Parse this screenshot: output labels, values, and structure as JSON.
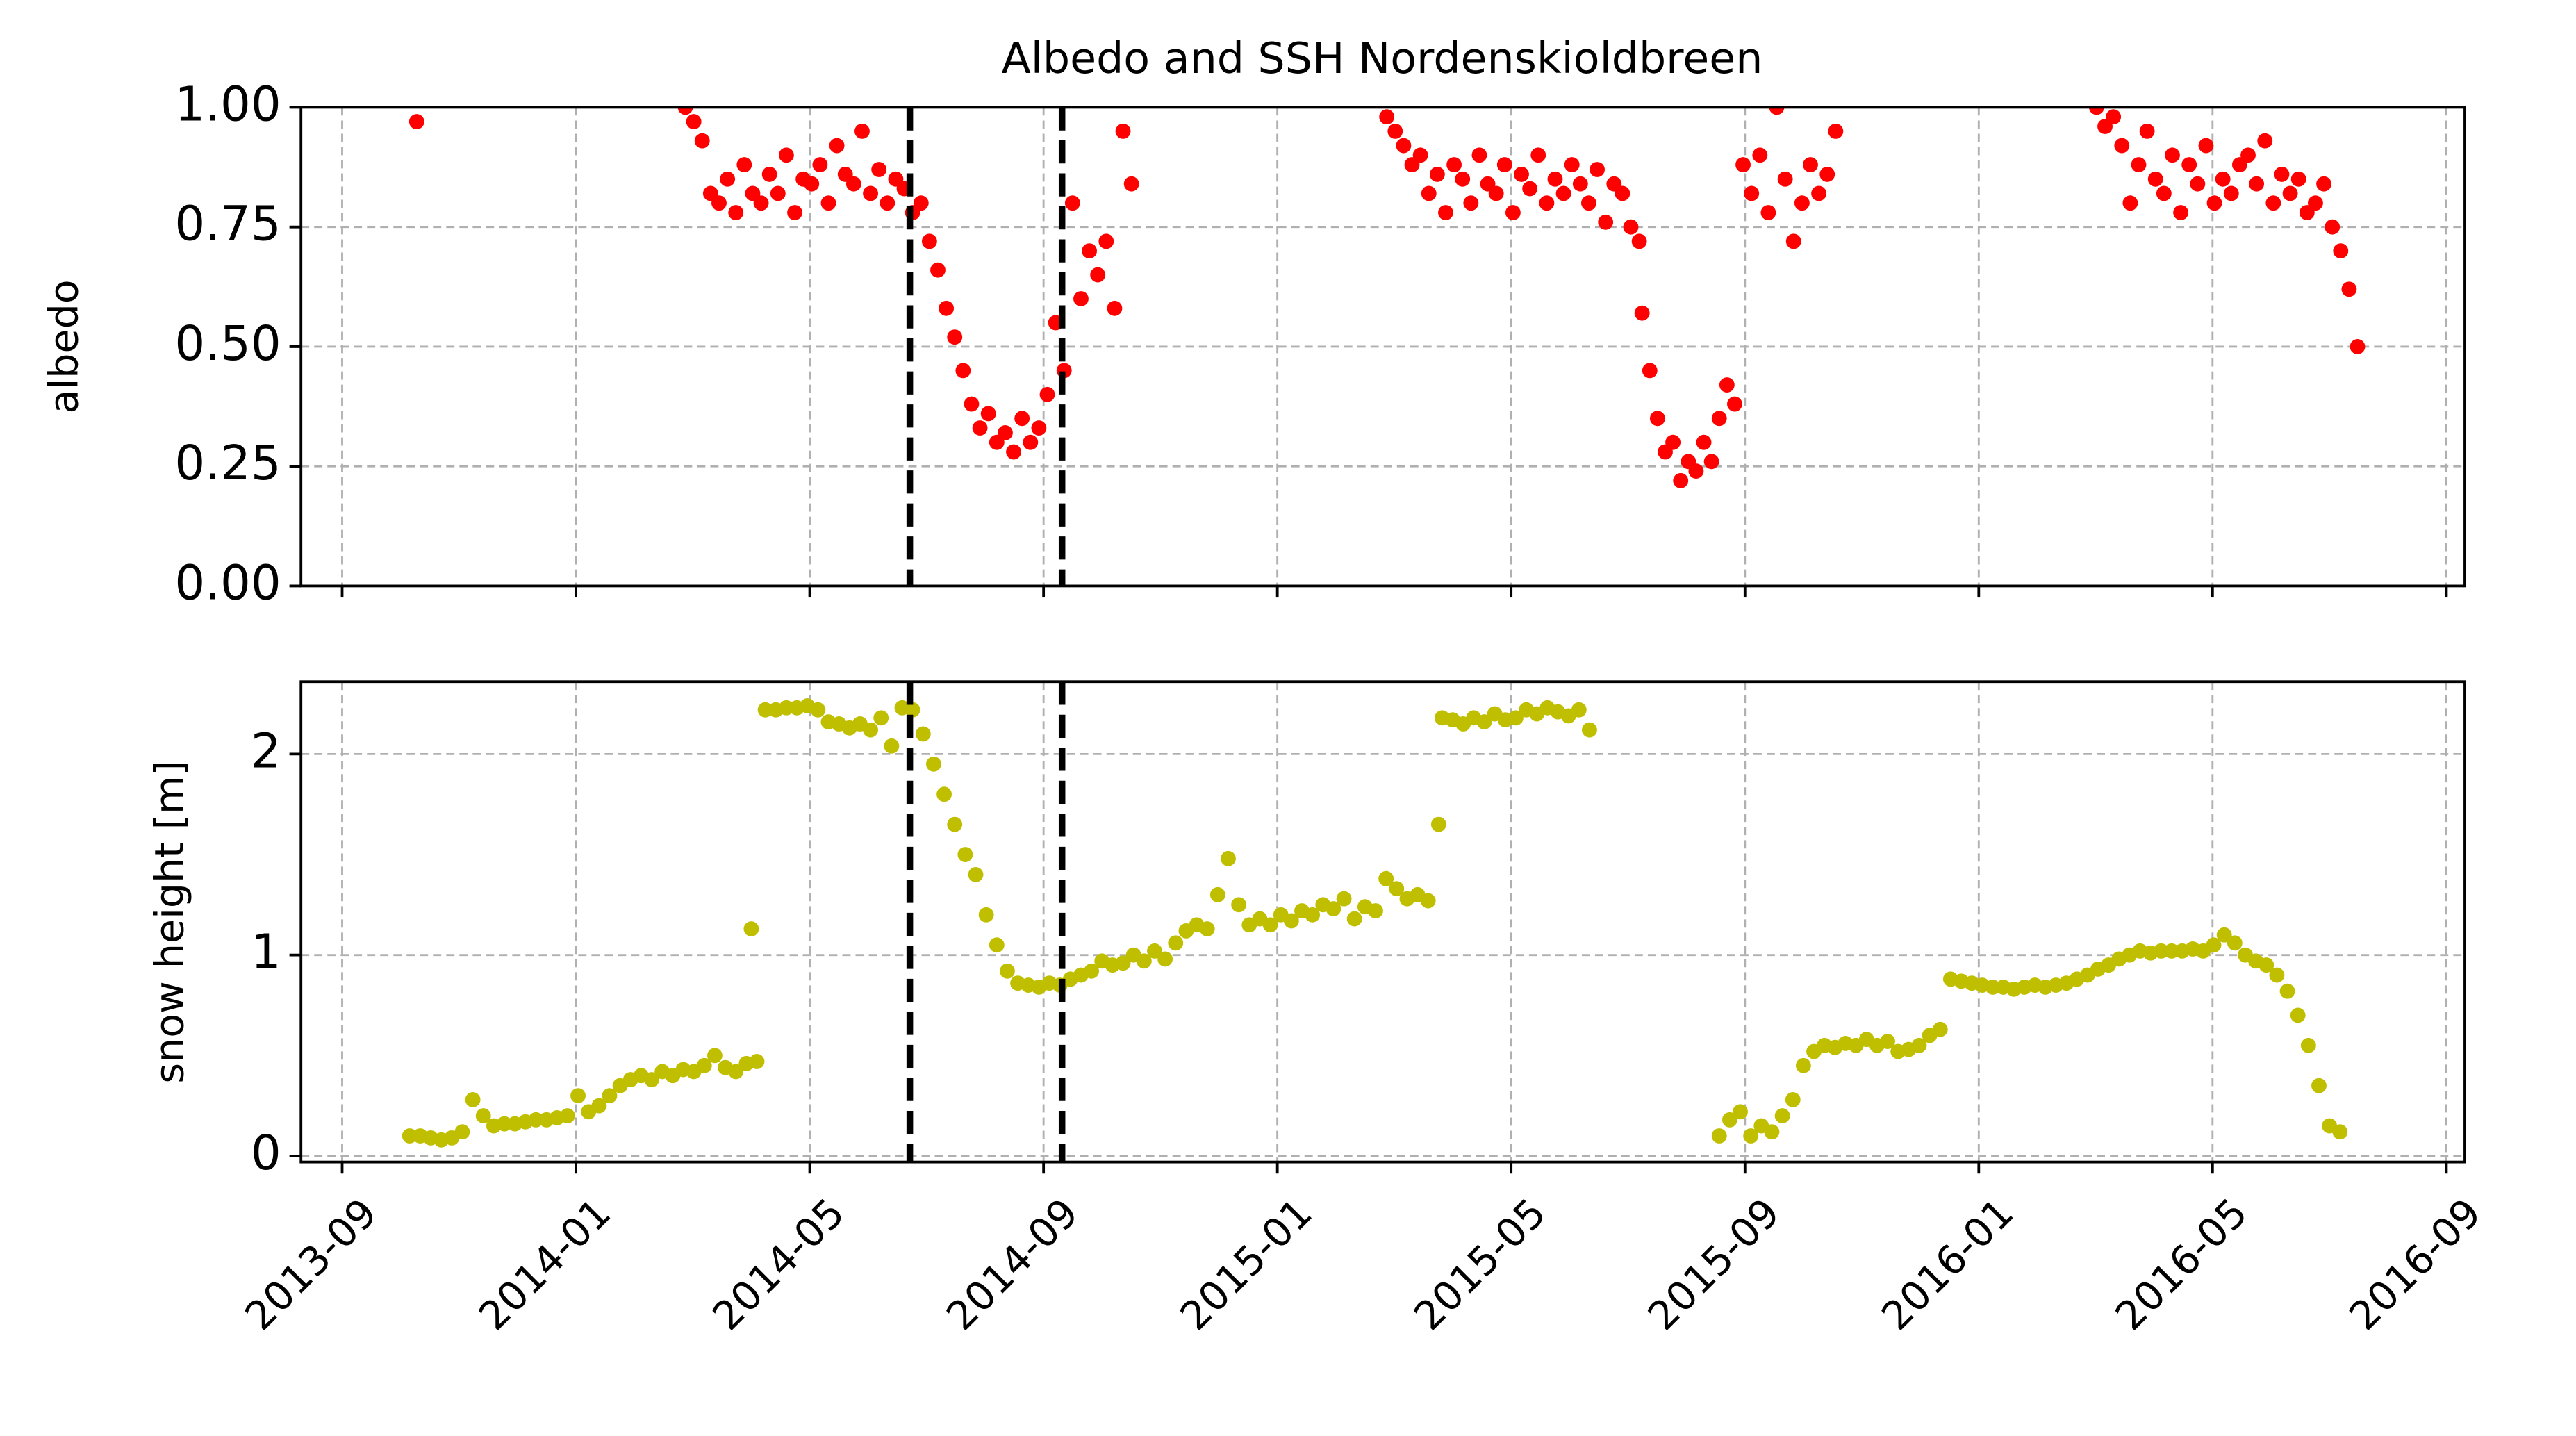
{
  "chart_data": [
    {
      "type": "scatter",
      "title": "Albedo and SSH Nordenskioldbreen",
      "ylabel": "albedo",
      "x": [
        2013.773,
        2014.156,
        2014.168,
        2014.18,
        2014.192,
        2014.204,
        2014.216,
        2014.228,
        2014.24,
        2014.252,
        2014.264,
        2014.276,
        2014.288,
        2014.3,
        2014.312,
        2014.324,
        2014.336,
        2014.348,
        2014.36,
        2014.372,
        2014.384,
        2014.396,
        2014.408,
        2014.42,
        2014.432,
        2014.444,
        2014.456,
        2014.468,
        2014.48,
        2014.492,
        2014.504,
        2014.516,
        2014.528,
        2014.54,
        2014.552,
        2014.564,
        2014.576,
        2014.588,
        2014.6,
        2014.612,
        2014.624,
        2014.636,
        2014.648,
        2014.66,
        2014.672,
        2014.684,
        2014.696,
        2014.708,
        2014.72,
        2014.732,
        2014.744,
        2014.756,
        2014.768,
        2014.78,
        2014.792,
        2015.156,
        2015.168,
        2015.18,
        2015.192,
        2015.204,
        2015.216,
        2015.228,
        2015.24,
        2015.252,
        2015.264,
        2015.276,
        2015.288,
        2015.3,
        2015.312,
        2015.324,
        2015.336,
        2015.348,
        2015.36,
        2015.372,
        2015.384,
        2015.396,
        2015.408,
        2015.42,
        2015.432,
        2015.444,
        2015.456,
        2015.468,
        2015.48,
        2015.492,
        2015.504,
        2015.516,
        2015.52,
        2015.531,
        2015.542,
        2015.553,
        2015.564,
        2015.575,
        2015.586,
        2015.597,
        2015.608,
        2015.619,
        2015.63,
        2015.641,
        2015.652,
        2015.664,
        2015.676,
        2015.688,
        2015.7,
        2015.712,
        2015.724,
        2015.736,
        2015.748,
        2015.76,
        2015.772,
        2015.784,
        2015.796,
        2016.168,
        2016.18,
        2016.192,
        2016.204,
        2016.216,
        2016.228,
        2016.24,
        2016.252,
        2016.264,
        2016.276,
        2016.288,
        2016.3,
        2016.312,
        2016.324,
        2016.336,
        2016.348,
        2016.36,
        2016.372,
        2016.384,
        2016.396,
        2016.408,
        2016.42,
        2016.432,
        2016.444,
        2016.456,
        2016.468,
        2016.48,
        2016.492,
        2016.504,
        2016.516,
        2016.528,
        2016.54
      ],
      "series": [
        {
          "color": "#ff0000",
          "values": [
            0.97,
            1.0,
            0.97,
            0.93,
            0.82,
            0.8,
            0.85,
            0.78,
            0.88,
            0.82,
            0.8,
            0.86,
            0.82,
            0.9,
            0.78,
            0.85,
            0.84,
            0.88,
            0.8,
            0.92,
            0.86,
            0.84,
            0.95,
            0.82,
            0.87,
            0.8,
            0.85,
            0.83,
            0.78,
            0.8,
            0.72,
            0.66,
            0.58,
            0.52,
            0.45,
            0.38,
            0.33,
            0.36,
            0.3,
            0.32,
            0.28,
            0.35,
            0.3,
            0.33,
            0.4,
            0.55,
            0.45,
            0.8,
            0.6,
            0.7,
            0.65,
            0.72,
            0.58,
            0.95,
            0.84,
            0.98,
            0.95,
            0.92,
            0.88,
            0.9,
            0.82,
            0.86,
            0.78,
            0.88,
            0.85,
            0.8,
            0.9,
            0.84,
            0.82,
            0.88,
            0.78,
            0.86,
            0.83,
            0.9,
            0.8,
            0.85,
            0.82,
            0.88,
            0.84,
            0.8,
            0.87,
            0.76,
            0.84,
            0.82,
            0.75,
            0.72,
            0.57,
            0.45,
            0.35,
            0.28,
            0.3,
            0.22,
            0.26,
            0.24,
            0.3,
            0.26,
            0.35,
            0.42,
            0.38,
            0.88,
            0.82,
            0.9,
            0.78,
            1.0,
            0.85,
            0.72,
            0.8,
            0.88,
            0.82,
            0.86,
            0.95,
            1.0,
            0.96,
            0.98,
            0.92,
            0.8,
            0.88,
            0.95,
            0.85,
            0.82,
            0.9,
            0.78,
            0.88,
            0.84,
            0.92,
            0.8,
            0.85,
            0.82,
            0.88,
            0.9,
            0.84,
            0.93,
            0.8,
            0.86,
            0.82,
            0.85,
            0.78,
            0.8,
            0.84,
            0.75,
            0.7,
            0.62,
            0.5
          ]
        }
      ],
      "ylim": [
        0,
        1
      ],
      "yticks": [
        {
          "value": 0,
          "label": "0.00"
        },
        {
          "value": 0.25,
          "label": "0.25"
        },
        {
          "value": 0.5,
          "label": "0.50"
        },
        {
          "value": 0.75,
          "label": "0.75"
        },
        {
          "value": 1,
          "label": "1.00"
        }
      ],
      "vlines": [
        2014.476,
        2014.693
      ],
      "grid": true
    },
    {
      "type": "scatter",
      "ylabel": "snow height [m]",
      "x": [
        2013.763,
        2013.778,
        2013.793,
        2013.808,
        2013.823,
        2013.838,
        2013.853,
        2013.868,
        2013.883,
        2013.898,
        2013.913,
        2013.928,
        2013.943,
        2013.958,
        2013.973,
        2013.988,
        2014.003,
        2014.018,
        2014.033,
        2014.048,
        2014.063,
        2014.078,
        2014.093,
        2014.108,
        2014.123,
        2014.138,
        2014.153,
        2014.168,
        2014.183,
        2014.198,
        2014.213,
        2014.228,
        2014.243,
        2014.25,
        2014.258,
        2014.27,
        2014.285,
        2014.3,
        2014.315,
        2014.33,
        2014.345,
        2014.36,
        2014.375,
        2014.39,
        2014.405,
        2014.42,
        2014.435,
        2014.45,
        2014.465,
        2014.48,
        2014.495,
        2014.51,
        2014.525,
        2014.54,
        2014.555,
        2014.57,
        2014.585,
        2014.6,
        2014.615,
        2014.63,
        2014.645,
        2014.66,
        2014.675,
        2014.69,
        2014.705,
        2014.72,
        2014.735,
        2014.75,
        2014.765,
        2014.78,
        2014.795,
        2014.81,
        2014.825,
        2014.84,
        2014.855,
        2014.87,
        2014.885,
        2014.9,
        2014.915,
        2014.93,
        2014.945,
        2014.96,
        2014.975,
        2014.99,
        2015.005,
        2015.02,
        2015.035,
        2015.05,
        2015.065,
        2015.08,
        2015.095,
        2015.11,
        2015.125,
        2015.14,
        2015.155,
        2015.17,
        2015.185,
        2015.2,
        2015.215,
        2015.23,
        2015.235,
        2015.25,
        2015.265,
        2015.28,
        2015.295,
        2015.31,
        2015.325,
        2015.34,
        2015.355,
        2015.37,
        2015.385,
        2015.4,
        2015.415,
        2015.43,
        2015.445,
        2015.63,
        2015.645,
        2015.66,
        2015.675,
        2015.69,
        2015.705,
        2015.72,
        2015.735,
        2015.75,
        2015.765,
        2015.78,
        2015.795,
        2015.81,
        2015.825,
        2015.84,
        2015.855,
        2015.87,
        2015.885,
        2015.9,
        2015.915,
        2015.93,
        2015.945,
        2015.96,
        2015.975,
        2015.99,
        2016.005,
        2016.02,
        2016.035,
        2016.05,
        2016.065,
        2016.08,
        2016.095,
        2016.11,
        2016.125,
        2016.14,
        2016.155,
        2016.17,
        2016.185,
        2016.2,
        2016.215,
        2016.23,
        2016.245,
        2016.26,
        2016.275,
        2016.29,
        2016.305,
        2016.32,
        2016.335,
        2016.35,
        2016.365,
        2016.38,
        2016.395,
        2016.41,
        2016.425,
        2016.44,
        2016.455,
        2016.47,
        2016.485,
        2016.5,
        2016.515
      ],
      "series": [
        {
          "color": "#bfbf00",
          "values": [
            0.1,
            0.1,
            0.09,
            0.08,
            0.09,
            0.12,
            0.28,
            0.2,
            0.15,
            0.16,
            0.16,
            0.17,
            0.18,
            0.18,
            0.19,
            0.2,
            0.3,
            0.22,
            0.25,
            0.3,
            0.35,
            0.38,
            0.4,
            0.38,
            0.42,
            0.4,
            0.43,
            0.42,
            0.45,
            0.5,
            0.44,
            0.42,
            0.46,
            1.13,
            0.47,
            2.22,
            2.22,
            2.23,
            2.23,
            2.24,
            2.22,
            2.16,
            2.15,
            2.13,
            2.15,
            2.12,
            2.18,
            2.04,
            2.23,
            2.22,
            2.1,
            1.95,
            1.8,
            1.65,
            1.5,
            1.4,
            1.2,
            1.05,
            0.92,
            0.86,
            0.85,
            0.84,
            0.86,
            0.85,
            0.88,
            0.9,
            0.92,
            0.97,
            0.95,
            0.96,
            1.0,
            0.97,
            1.02,
            0.98,
            1.06,
            1.12,
            1.15,
            1.13,
            1.3,
            1.48,
            1.25,
            1.15,
            1.18,
            1.15,
            1.2,
            1.17,
            1.22,
            1.2,
            1.25,
            1.23,
            1.28,
            1.18,
            1.24,
            1.22,
            1.38,
            1.33,
            1.28,
            1.3,
            1.27,
            1.65,
            2.18,
            2.17,
            2.15,
            2.18,
            2.16,
            2.2,
            2.17,
            2.18,
            2.22,
            2.2,
            2.23,
            2.21,
            2.19,
            2.22,
            2.12,
            0.1,
            0.18,
            0.22,
            0.1,
            0.15,
            0.12,
            0.2,
            0.28,
            0.45,
            0.52,
            0.55,
            0.54,
            0.56,
            0.55,
            0.58,
            0.55,
            0.57,
            0.52,
            0.53,
            0.55,
            0.6,
            0.63,
            0.88,
            0.87,
            0.86,
            0.85,
            0.84,
            0.84,
            0.83,
            0.84,
            0.85,
            0.84,
            0.85,
            0.86,
            0.88,
            0.9,
            0.93,
            0.95,
            0.98,
            1.0,
            1.02,
            1.01,
            1.02,
            1.02,
            1.02,
            1.03,
            1.02,
            1.05,
            1.1,
            1.06,
            1.0,
            0.97,
            0.95,
            0.9,
            0.82,
            0.7,
            0.55,
            0.35,
            0.15,
            0.12
          ]
        }
      ],
      "ylim": [
        -0.03,
        2.36
      ],
      "yticks": [
        0,
        1,
        2
      ],
      "xlim": [
        2013.608,
        2016.693
      ],
      "xticks": [
        {
          "value": 2013.6667,
          "label": "2013-09"
        },
        {
          "value": 2014.0,
          "label": "2014-01"
        },
        {
          "value": 2014.3333,
          "label": "2014-05"
        },
        {
          "value": 2014.6667,
          "label": "2014-09"
        },
        {
          "value": 2015.0,
          "label": "2015-01"
        },
        {
          "value": 2015.3333,
          "label": "2015-05"
        },
        {
          "value": 2015.6667,
          "label": "2015-09"
        },
        {
          "value": 2016.0,
          "label": "2016-01"
        },
        {
          "value": 2016.3333,
          "label": "2016-05"
        },
        {
          "value": 2016.6667,
          "label": "2016-09"
        }
      ],
      "vlines": [
        2014.476,
        2014.693
      ],
      "grid": true
    }
  ]
}
